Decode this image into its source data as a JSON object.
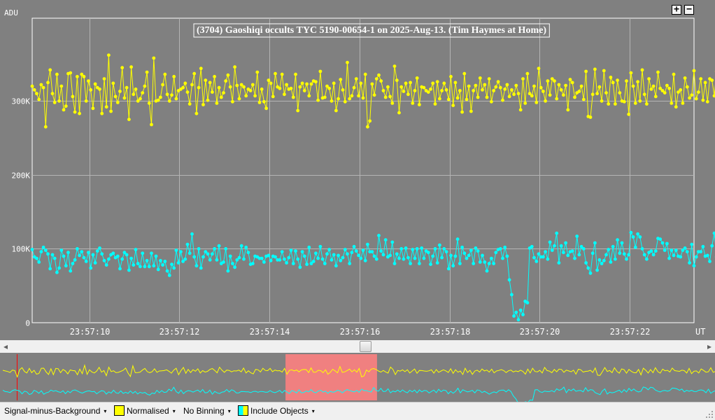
{
  "chart_data": {
    "type": "line",
    "title": "(3704) Gaoshiqi occults TYC 5190-00654-1 on 2025-Aug-13. (Tim Haymes at Home)",
    "ylabel": "ADU",
    "xlabel": "UT",
    "y_ticks": [
      "0",
      "100K",
      "200K",
      "300K"
    ],
    "x_ticks": [
      "23:57:10",
      "23:57:12",
      "23:57:14",
      "23:57:16",
      "23:57:18",
      "23:57:20",
      "23:57:22"
    ],
    "ylim": [
      0,
      412000
    ],
    "x_range_seconds": [
      8.73,
      23.43
    ],
    "x_start_time": "23:57:08.73",
    "x_step_s": 0.05,
    "grid": true,
    "series": [
      {
        "color": "#ffff00",
        "values": [
          320,
          315,
          310,
          302,
          322,
          318,
          265,
          325,
          342,
          310,
          298,
          336,
          300,
          320,
          288,
          293,
          337,
          338,
          306,
          285,
          333,
          283,
          336,
          333,
          300,
          327,
          315,
          290,
          323,
          318,
          316,
          283,
          330,
          292,
          362,
          286,
          324,
          306,
          298,
          313,
          345,
          304,
          318,
          275,
          346,
          309,
          316,
          300,
          303,
          311,
          320,
          339,
          297,
          268,
          358,
          300,
          301,
          305,
          322,
          336,
          309,
          300,
          308,
          333,
          303,
          314,
          316,
          318,
          324,
          312,
          296,
          322,
          337,
          283,
          318,
          344,
          295,
          328,
          301,
          325,
          312,
          333,
          297,
          318,
          305,
          311,
          327,
          335,
          319,
          299,
          346,
          321,
          303,
          322,
          319,
          307,
          316,
          314,
          322,
          307,
          339,
          298,
          316,
          299,
          290,
          328,
          324,
          306,
          337,
          319,
          317,
          336,
          309,
          322,
          316,
          317,
          305,
          336,
          287,
          319,
          324,
          314,
          323,
          307,
          323,
          327,
          326,
          301,
          340,
          304,
          305,
          320,
          317,
          300,
          324,
          287,
          303,
          329,
          315,
          299,
          352,
          303,
          307,
          318,
          330,
          307,
          324,
          304,
          336,
          265,
          273,
          323,
          308,
          330,
          335,
          327,
          314,
          305,
          319,
          306,
          297,
          347,
          328,
          284,
          319,
          313,
          324,
          309,
          325,
          297,
          314,
          331,
          295,
          319,
          318,
          314,
          312,
          316,
          324,
          296,
          326,
          303,
          314,
          324,
          315,
          302,
          333,
          294,
          325,
          304,
          314,
          285,
          337,
          302,
          320,
          286,
          314,
          321,
          305,
          331,
          315,
          322,
          305,
          330,
          299,
          314,
          319,
          326,
          318,
          301,
          316,
          322,
          306,
          315,
          309,
          321,
          310,
          288,
          330,
          297,
          337,
          310,
          307,
          320,
          298,
          344,
          318,
          313,
          300,
          327,
          308,
          330,
          327,
          303,
          322,
          315,
          308,
          321,
          288,
          329,
          325,
          305,
          311,
          313,
          320,
          302,
          340,
          279,
          278,
          309,
          343,
          310,
          319,
          300,
          341,
          311,
          296,
          332,
          325,
          296,
          328,
          311,
          300,
          299,
          327,
          282,
          338,
          320,
          297,
          326,
          300,
          342,
          309,
          296,
          330,
          316,
          320,
          306,
          339,
          317,
          314,
          311,
          321,
          317,
          297,
          336,
          292,
          312,
          315,
          297,
          331,
          319,
          304,
          308,
          341,
          303,
          312,
          330,
          301,
          325,
          299,
          330,
          328,
          307,
          340,
          302,
          328,
          313,
          328,
          309,
          301,
          321,
          304,
          307,
          322,
          308,
          331,
          304,
          308,
          318,
          333,
          297,
          325,
          306,
          294,
          319,
          328,
          292,
          338,
          310,
          304,
          338,
          306,
          289,
          326
        ]
      },
      {
        "color": "#00ffff",
        "values": [
          99,
          89,
          87,
          82,
          96,
          102,
          98,
          93,
          73,
          92,
          87,
          68,
          74,
          98,
          90,
          77,
          95,
          70,
          80,
          85,
          100,
          91,
          96,
          88,
          83,
          95,
          74,
          92,
          81,
          97,
          101,
          93,
          84,
          78,
          86,
          92,
          94,
          88,
          90,
          73,
          86,
          95,
          92,
          71,
          87,
          78,
          99,
          80,
          76,
          94,
          76,
          84,
          76,
          94,
          77,
          90,
          72,
          84,
          78,
          83,
          70,
          64,
          79,
          74,
          98,
          81,
          96,
          83,
          86,
          106,
          94,
          120,
          89,
          77,
          100,
          74,
          89,
          96,
          93,
          85,
          93,
          100,
          85,
          104,
          80,
          82,
          100,
          70,
          90,
          80,
          75,
          85,
          88,
          104,
          86,
          102,
          95,
          79,
          80,
          90,
          89,
          87,
          87,
          82,
          90,
          91,
          84,
          90,
          89,
          85,
          85,
          96,
          86,
          81,
          88,
          98,
          80,
          97,
          86,
          75,
          96,
          90,
          79,
          102,
          80,
          83,
          94,
          87,
          103,
          86,
          80,
          93,
          99,
          85,
          92,
          77,
          91,
          84,
          88,
          99,
          93,
          80,
          95,
          103,
          97,
          91,
          87,
          98,
          84,
          106,
          96,
          96,
          90,
          86,
          118,
          97,
          92,
          112,
          89,
          91,
          109,
          80,
          93,
          87,
          100,
          86,
          101,
          88,
          80,
          99,
          87,
          100,
          80,
          101,
          87,
          97,
          95,
          79,
          90,
          100,
          81,
          105,
          88,
          100,
          96,
          73,
          91,
          77,
          90,
          113,
          80,
          102,
          94,
          87,
          91,
          98,
          80,
          101,
          97,
          82,
          91,
          82,
          70,
          80,
          87,
          80,
          95,
          99,
          100,
          87,
          102,
          90,
          58,
          38,
          9,
          14,
          4,
          17,
          11,
          29,
          27,
          101,
          103,
          88,
          83,
          93,
          89,
          89,
          96,
          86,
          109,
          98,
          104,
          121,
          81,
          104,
          95,
          108,
          91,
          96,
          97,
          87,
          117,
          92,
          103,
          100,
          81,
          74,
          67,
          94,
          108,
          71,
          85,
          80,
          84,
          92,
          99,
          82,
          103,
          86,
          112,
          94,
          108,
          93,
          86,
          92,
          122,
          116,
          102,
          120,
          116,
          100,
          92,
          86,
          95,
          97,
          92,
          97,
          114,
          113,
          108,
          98,
          107,
          87,
          98,
          91,
          98,
          90,
          89,
          98,
          101,
          96,
          81,
          106,
          77,
          89,
          96,
          96,
          103,
          90,
          91,
          83,
          104,
          121,
          89,
          100,
          89,
          89,
          106,
          96,
          101,
          95,
          97,
          101,
          85,
          105,
          94,
          100,
          78,
          102,
          93,
          86,
          89,
          97,
          104,
          100,
          84,
          103,
          78,
          88,
          95,
          94,
          83,
          92,
          87,
          85,
          111,
          91,
          100,
          103,
          98,
          89,
          85,
          86,
          85,
          78,
          98,
          99,
          107,
          76,
          102,
          97,
          80,
          101,
          89,
          87,
          103,
          101,
          99,
          86,
          83,
          86,
          96,
          102,
          94,
          94,
          93,
          99,
          79,
          83,
          51,
          93,
          102,
          91,
          87,
          113,
          96,
          76,
          104,
          95,
          107,
          87,
          103,
          96,
          112,
          108,
          101,
          86,
          103,
          97,
          93,
          101,
          88,
          98,
          98,
          103,
          95,
          99,
          102,
          99,
          102,
          86,
          90,
          83,
          103,
          98,
          87,
          95,
          74,
          98,
          96,
          111,
          97,
          99,
          101,
          93,
          81,
          99,
          102,
          91,
          107,
          113,
          102,
          121,
          104,
          110,
          99,
          103,
          107,
          114,
          92,
          85,
          92,
          107,
          95,
          83
        ]
      }
    ],
    "overview": {
      "highlight_range_seconds": [
        14.6,
        16.5
      ]
    }
  },
  "zoom": {
    "plus": "+",
    "minus": "−"
  },
  "scroll": {
    "left": "◂",
    "right": "▸"
  },
  "toolbar": {
    "mode": "Signal-minus-Background",
    "normalised": "Normalised",
    "binning": "No Binning",
    "objects": "Include Objects",
    "dropdown_glyph": "▾",
    "normalised_color": "#ffff00",
    "objects_colors": [
      "#00ffff",
      "#ffff00"
    ]
  },
  "colors": {
    "background": "#808080",
    "grid": "#b4b4b4",
    "highlight": "#f08080",
    "marker": "#ff0000"
  }
}
